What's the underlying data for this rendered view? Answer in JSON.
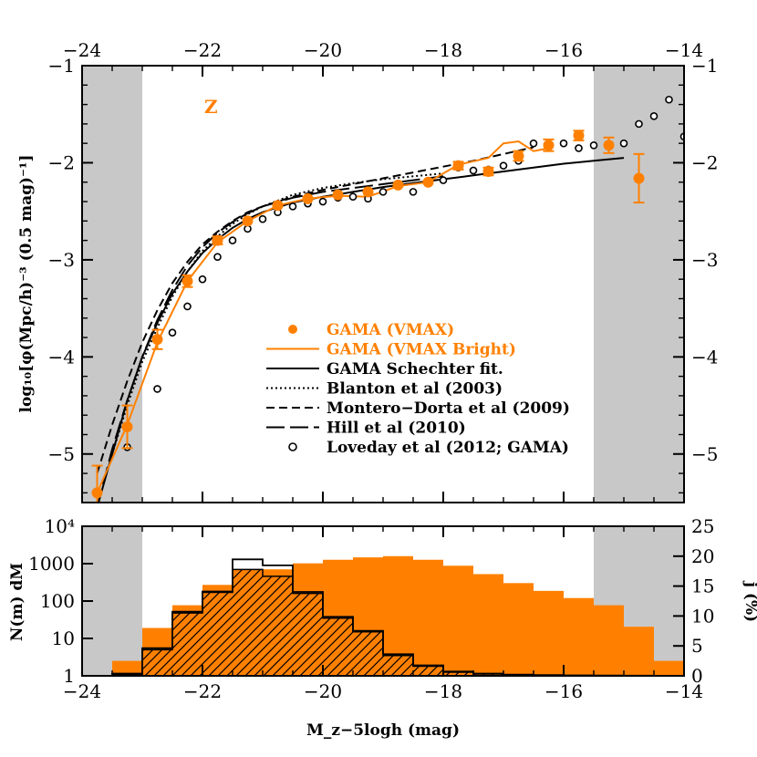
{
  "colors": {
    "gama": "#ff8000",
    "black": "#000000",
    "shade": "#c8c8c8",
    "hatch_fill": "#ff8000"
  },
  "panel_label": "Z",
  "top_axis": {
    "xlim": [
      -24,
      -14
    ],
    "ylim": [
      -5.5,
      -1
    ],
    "x_ticks": [
      -24,
      -22,
      -20,
      -18,
      -16,
      -14
    ],
    "x_tick_labels": [
      "−24",
      "−22",
      "−20",
      "−18",
      "−16",
      "−14"
    ],
    "y_ticks": [
      -5,
      -4,
      -3,
      -2,
      -1
    ],
    "y_tick_labels": [
      "−5",
      "−4",
      "−3",
      "−2",
      "−1"
    ],
    "ylabel": "log₁₀[φ(Mpc/h)⁻³ (0.5 mag)⁻¹]",
    "shaded_ranges": [
      [
        -24,
        -23
      ],
      [
        -15.5,
        -14
      ]
    ]
  },
  "bottom_axis": {
    "xlim": [
      -24,
      -14
    ],
    "x_ticks": [
      -24,
      -22,
      -20,
      -18,
      -16,
      -14
    ],
    "x_tick_labels": [
      "−24",
      "−22",
      "−20",
      "−18",
      "−16",
      "−14"
    ],
    "left_ylabel": "N(m) dM",
    "left_y_ticks": [
      1,
      10,
      100,
      1000,
      10000
    ],
    "left_y_tick_labels": [
      "1",
      "10",
      "100",
      "1000",
      "10⁴"
    ],
    "right_ylabel": "j (%)",
    "right_y_ticks": [
      0,
      5,
      10,
      15,
      20,
      25
    ],
    "right_y_tick_labels": [
      "0",
      "5",
      "10",
      "15",
      "20",
      "25"
    ],
    "xlabel": "M_z−5logh (mag)",
    "shaded_ranges": [
      [
        -24,
        -23
      ],
      [
        -15.5,
        -14
      ]
    ]
  },
  "legend": [
    {
      "label": "GAMA (VMAX)",
      "style": "filled-circle",
      "color": "#ff8000"
    },
    {
      "label": "GAMA (VMAX Bright)",
      "style": "solid-line",
      "color": "#ff8000"
    },
    {
      "label": "GAMA Schechter fit.",
      "style": "solid-line",
      "color": "#000000"
    },
    {
      "label": "Blanton et al (2003)",
      "style": "dotted-line",
      "color": "#000000"
    },
    {
      "label": "Montero−Dorta et al (2009)",
      "style": "short-dash",
      "color": "#000000"
    },
    {
      "label": "Hill et al (2010)",
      "style": "long-dash",
      "color": "#000000"
    },
    {
      "label": "Loveday et al (2012; GAMA)",
      "style": "open-circle",
      "color": "#000000"
    }
  ],
  "chart_data": [
    {
      "type": "scatter",
      "series": [
        {
          "name": "GAMA (VMAX)",
          "x": [
            -23.75,
            -23.25,
            -22.75,
            -22.25,
            -21.75,
            -21.25,
            -20.75,
            -20.25,
            -19.75,
            -19.25,
            -18.75,
            -18.25,
            -17.75,
            -17.25,
            -16.75,
            -16.25,
            -15.75,
            -15.25,
            -14.75
          ],
          "y": [
            -5.4,
            -4.72,
            -3.82,
            -3.22,
            -2.8,
            -2.6,
            -2.44,
            -2.37,
            -2.33,
            -2.3,
            -2.23,
            -2.2,
            -2.03,
            -2.09,
            -1.93,
            -1.82,
            -1.72,
            -1.82,
            -2.16
          ],
          "yerr": [
            0.28,
            0.22,
            0.1,
            0.06,
            0.04,
            0.03,
            0.03,
            0.02,
            0.02,
            0.02,
            0.02,
            0.03,
            0.04,
            0.04,
            0.05,
            0.06,
            0.05,
            0.08,
            0.25
          ]
        },
        {
          "name": "GAMA (VMAX Bright)",
          "x": [
            -23.75,
            -23.25,
            -22.75,
            -22.25,
            -21.75,
            -21.25,
            -20.75,
            -20.25,
            -19.75,
            -19.25,
            -18.75,
            -18.25,
            -17.75,
            -17.25,
            -17.0,
            -16.75,
            -16.5,
            -16.25
          ],
          "y": [
            -5.4,
            -4.7,
            -3.85,
            -3.22,
            -2.82,
            -2.6,
            -2.44,
            -2.37,
            -2.34,
            -2.35,
            -2.24,
            -2.2,
            -2.02,
            -1.95,
            -1.8,
            -1.78,
            -1.88,
            -1.85
          ]
        },
        {
          "name": "GAMA Schechter fit.",
          "x": [
            -23.75,
            -23.5,
            -23.25,
            -23.0,
            -22.75,
            -22.5,
            -22.25,
            -22.0,
            -21.75,
            -21.5,
            -21.25,
            -21.0,
            -20.5,
            -20.0,
            -19.5,
            -19.0,
            -18.5,
            -18.0,
            -17.5,
            -17.0,
            -16.5,
            -16.0,
            -15.5,
            -15.0
          ],
          "y": [
            -5.55,
            -5.0,
            -4.45,
            -4.0,
            -3.65,
            -3.35,
            -3.12,
            -2.93,
            -2.79,
            -2.67,
            -2.58,
            -2.51,
            -2.41,
            -2.35,
            -2.3,
            -2.25,
            -2.21,
            -2.17,
            -2.13,
            -2.09,
            -2.05,
            -2.01,
            -1.98,
            -1.95
          ]
        },
        {
          "name": "Blanton et al (2003)",
          "x": [
            -23.5,
            -23.25,
            -23.0,
            -22.75,
            -22.5,
            -22.25,
            -22.0,
            -21.75,
            -21.5,
            -21.25,
            -21.0,
            -20.5,
            -20.0,
            -19.5,
            -19.0,
            -18.5,
            -18.0
          ],
          "y": [
            -5.0,
            -4.5,
            -4.05,
            -3.7,
            -3.38,
            -3.12,
            -2.91,
            -2.76,
            -2.63,
            -2.53,
            -2.45,
            -2.33,
            -2.26,
            -2.21,
            -2.17,
            -2.14,
            -2.11
          ]
        },
        {
          "name": "Montero−Dorta et al (2009)",
          "x": [
            -23.75,
            -23.5,
            -23.25,
            -23.0,
            -22.75,
            -22.5,
            -22.25,
            -22.0,
            -21.75,
            -21.5,
            -21.25,
            -21.0,
            -20.5,
            -20.0,
            -19.5,
            -19.0,
            -18.5,
            -18.0,
            -17.5,
            -17.0,
            -16.5
          ],
          "y": [
            -5.2,
            -4.7,
            -4.25,
            -3.85,
            -3.52,
            -3.24,
            -3.02,
            -2.84,
            -2.71,
            -2.6,
            -2.51,
            -2.45,
            -2.35,
            -2.28,
            -2.22,
            -2.16,
            -2.1,
            -2.04,
            -1.98,
            -1.91,
            -1.84
          ]
        },
        {
          "name": "Hill et al (2010)",
          "x": [
            -23.75,
            -23.5,
            -23.25,
            -23.0,
            -22.75,
            -22.5,
            -22.25,
            -22.0,
            -21.75,
            -21.5,
            -21.25,
            -21.0,
            -20.5,
            -20.0,
            -19.5,
            -19.0,
            -18.5,
            -18.0
          ],
          "y": [
            -5.55,
            -4.95,
            -4.45,
            -4.0,
            -3.62,
            -3.31,
            -3.06,
            -2.87,
            -2.72,
            -2.61,
            -2.52,
            -2.45,
            -2.36,
            -2.3,
            -2.26,
            -2.22,
            -2.18,
            -2.14
          ]
        },
        {
          "name": "Loveday et al (2012; GAMA)",
          "x": [
            -23.25,
            -22.75,
            -22.5,
            -22.25,
            -22.0,
            -21.75,
            -21.5,
            -21.25,
            -21.0,
            -20.75,
            -20.5,
            -20.25,
            -20.0,
            -19.75,
            -19.5,
            -19.25,
            -19.0,
            -18.75,
            -18.5,
            -18.25,
            -18.0,
            -17.75,
            -17.5,
            -17.25,
            -17.0,
            -16.75,
            -16.5,
            -16.25,
            -16.0,
            -15.75,
            -15.5,
            -15.25,
            -15.0,
            -14.75,
            -14.5,
            -14.25,
            -14.0
          ],
          "y": [
            -4.93,
            -4.33,
            -3.75,
            -3.48,
            -3.2,
            -2.97,
            -2.8,
            -2.68,
            -2.58,
            -2.51,
            -2.45,
            -2.42,
            -2.4,
            -2.36,
            -2.35,
            -2.37,
            -2.3,
            -2.24,
            -2.3,
            -2.21,
            -2.18,
            -2.05,
            -2.08,
            -2.07,
            -2.03,
            -1.98,
            -1.8,
            -1.84,
            -1.8,
            -1.85,
            -1.82,
            -1.82,
            -1.8,
            -1.6,
            -1.52,
            -1.35,
            -1.73
          ]
        }
      ],
      "xlabel": "",
      "ylabel": "log₁₀[φ(Mpc/h)⁻³ (0.5 mag)⁻¹]"
    },
    {
      "type": "bar",
      "bin_width": 0.5,
      "series": [
        {
          "name": "j (%)",
          "axis": "right",
          "x_left": [
            -23.5,
            -23.0,
            -22.5,
            -22.0,
            -21.5,
            -21.0,
            -20.5,
            -20.0,
            -19.5,
            -19.0,
            -18.5,
            -18.0,
            -17.5,
            -17.0,
            -16.5,
            -16.0,
            -15.5,
            -15.0,
            -14.5
          ],
          "values": [
            2.5,
            8.0,
            11.8,
            15.2,
            17.4,
            17.8,
            18.8,
            19.4,
            19.8,
            20.0,
            19.4,
            18.4,
            17.0,
            15.5,
            14.2,
            13.0,
            11.8,
            8.2,
            2.5
          ]
        },
        {
          "name": "N(m) dM",
          "axis": "left",
          "x_left": [
            -23.5,
            -23.0,
            -22.5,
            -22.0,
            -21.5,
            -21.0,
            -20.5,
            -20.0,
            -19.5,
            -19.0,
            -18.5,
            -18.0,
            -17.5,
            -17.0,
            -16.5,
            -16.0,
            -15.5,
            -15.0
          ],
          "values": [
            1.1,
            5,
            48,
            170,
            700,
            460,
            160,
            35,
            15,
            3.5,
            1.8,
            1.25,
            1.12,
            1.06,
            1.03,
            1.02,
            1.01,
            1.0
          ]
        },
        {
          "name": "N(m) dM (outline)",
          "axis": "left",
          "x_left": [
            -23.5,
            -23.0,
            -22.5,
            -22.0,
            -21.5,
            -21.0,
            -20.5,
            -20.0,
            -19.5,
            -19.0,
            -18.5,
            -18.0,
            -17.5,
            -17.0,
            -16.5,
            -16.0,
            -15.5,
            -15.0
          ],
          "values": [
            1.15,
            5.5,
            52,
            180,
            1300,
            900,
            175,
            38,
            16,
            3.8,
            1.9,
            1.3,
            1.15,
            1.08,
            1.05,
            1.03,
            1.02,
            1.01
          ]
        }
      ],
      "xlabel": "M_z−5logh (mag)",
      "ylabel": "N(m) dM"
    }
  ]
}
